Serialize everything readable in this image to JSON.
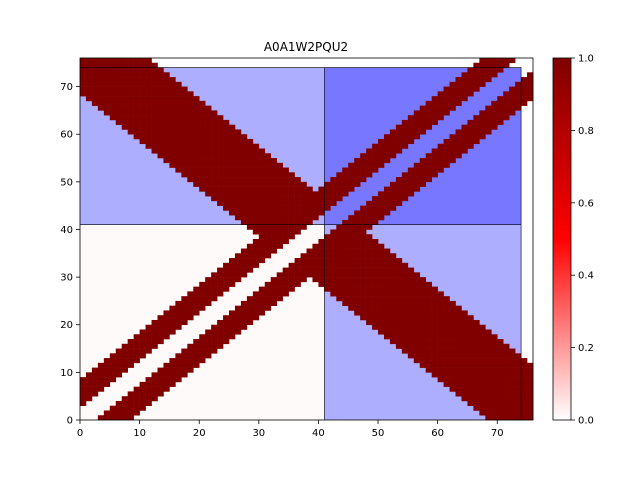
{
  "chart_data": {
    "type": "heatmap",
    "title": "A0A1W2PQU2",
    "xlabel": "",
    "ylabel": "",
    "n": 76,
    "xlim": [
      0,
      76
    ],
    "ylim": [
      0,
      76
    ],
    "x_ticks": [
      0,
      10,
      20,
      30,
      40,
      50,
      60,
      70
    ],
    "y_ticks": [
      0,
      10,
      20,
      30,
      40,
      50,
      60,
      70
    ],
    "colorbar": {
      "range": [
        0,
        1
      ],
      "ticks": [
        "0.0",
        "0.2",
        "0.4",
        "0.6",
        "0.8",
        "1.0"
      ],
      "colormap": [
        "#ffffff",
        "#ff0000",
        "#800000"
      ]
    },
    "matrix_description": {
      "value_high": 1.0,
      "value_low": 0.0,
      "diagonal_band": {
        "center_offset": 0,
        "half_width": 2,
        "value": 0.0
      },
      "high_bands": [
        {
          "axis": "diagonal",
          "from_offset": 3,
          "to_offset": 8
        },
        {
          "axis": "anti_diagonal",
          "sum_min": 68,
          "sum_max": 86
        }
      ]
    },
    "regions": [
      {
        "x": [
          0,
          41
        ],
        "y": [
          41,
          74
        ],
        "fill": "#aeaeff"
      },
      {
        "x": [
          41,
          74
        ],
        "y": [
          41,
          74
        ],
        "fill": "#7777ff"
      },
      {
        "x": [
          41,
          74
        ],
        "y": [
          0,
          41
        ],
        "fill": "#aeaeff"
      },
      {
        "x": [
          0,
          41
        ],
        "y": [
          0,
          41
        ],
        "fill": "#fffafa"
      }
    ],
    "domain_boundaries": [
      41,
      74
    ],
    "grid": false
  }
}
